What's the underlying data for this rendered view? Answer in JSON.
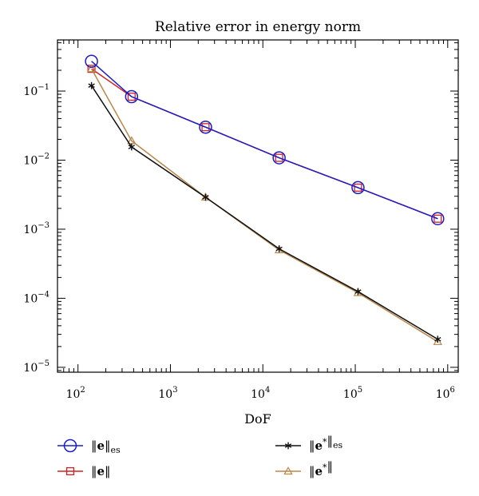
{
  "chart_data": {
    "type": "line",
    "title": "Relative error in energy norm",
    "xlabel": "DoF",
    "ylabel": "",
    "x_scale": "log",
    "y_scale": "log",
    "xlim": [
      60,
      1300000
    ],
    "ylim": [
      8.5e-06,
      0.55
    ],
    "grid": false,
    "legend_position": "bottom",
    "x_ticks": [
      {
        "value": 100,
        "base": "10",
        "exp": "2"
      },
      {
        "value": 1000,
        "base": "10",
        "exp": "3"
      },
      {
        "value": 10000,
        "base": "10",
        "exp": "4"
      },
      {
        "value": 100000,
        "base": "10",
        "exp": "5"
      },
      {
        "value": 1000000,
        "base": "10",
        "exp": "6"
      }
    ],
    "y_ticks": [
      {
        "value": 0.1,
        "base": "10",
        "exp": "−1"
      },
      {
        "value": 0.01,
        "base": "10",
        "exp": "−2"
      },
      {
        "value": 0.001,
        "base": "10",
        "exp": "−3"
      },
      {
        "value": 0.0001,
        "base": "10",
        "exp": "−4"
      },
      {
        "value": 1e-05,
        "base": "10",
        "exp": "−5"
      }
    ],
    "series": [
      {
        "id": "e-es",
        "legend": {
          "norm": "e",
          "star": "",
          "sub": "es"
        },
        "color": "#1c1cc8",
        "marker": "circle",
        "x": [
          140,
          380,
          2400,
          15000,
          107000,
          780000
        ],
        "y": [
          0.27,
          0.083,
          0.03,
          0.0108,
          0.004,
          0.00142
        ]
      },
      {
        "id": "e",
        "legend": {
          "norm": "e",
          "star": "",
          "sub": ""
        },
        "color": "#d42020",
        "marker": "square",
        "x": [
          140,
          380,
          2400,
          15000,
          107000,
          780000
        ],
        "y": [
          0.21,
          0.083,
          0.03,
          0.0108,
          0.004,
          0.00142
        ]
      },
      {
        "id": "estar-es",
        "legend": {
          "norm": "e",
          "star": "*",
          "sub": "es"
        },
        "color": "#111111",
        "marker": "star",
        "x": [
          140,
          380,
          2400,
          15000,
          107000,
          780000
        ],
        "y": [
          0.12,
          0.0155,
          0.0029,
          0.00052,
          0.000125,
          2.55e-05
        ]
      },
      {
        "id": "estar",
        "legend": {
          "norm": "e",
          "star": "*",
          "sub": ""
        },
        "color": "#b8874a",
        "marker": "triangle",
        "x": [
          140,
          380,
          2400,
          15000,
          107000,
          780000
        ],
        "y": [
          0.21,
          0.019,
          0.0029,
          0.0005,
          0.00012,
          2.35e-05
        ]
      }
    ]
  }
}
